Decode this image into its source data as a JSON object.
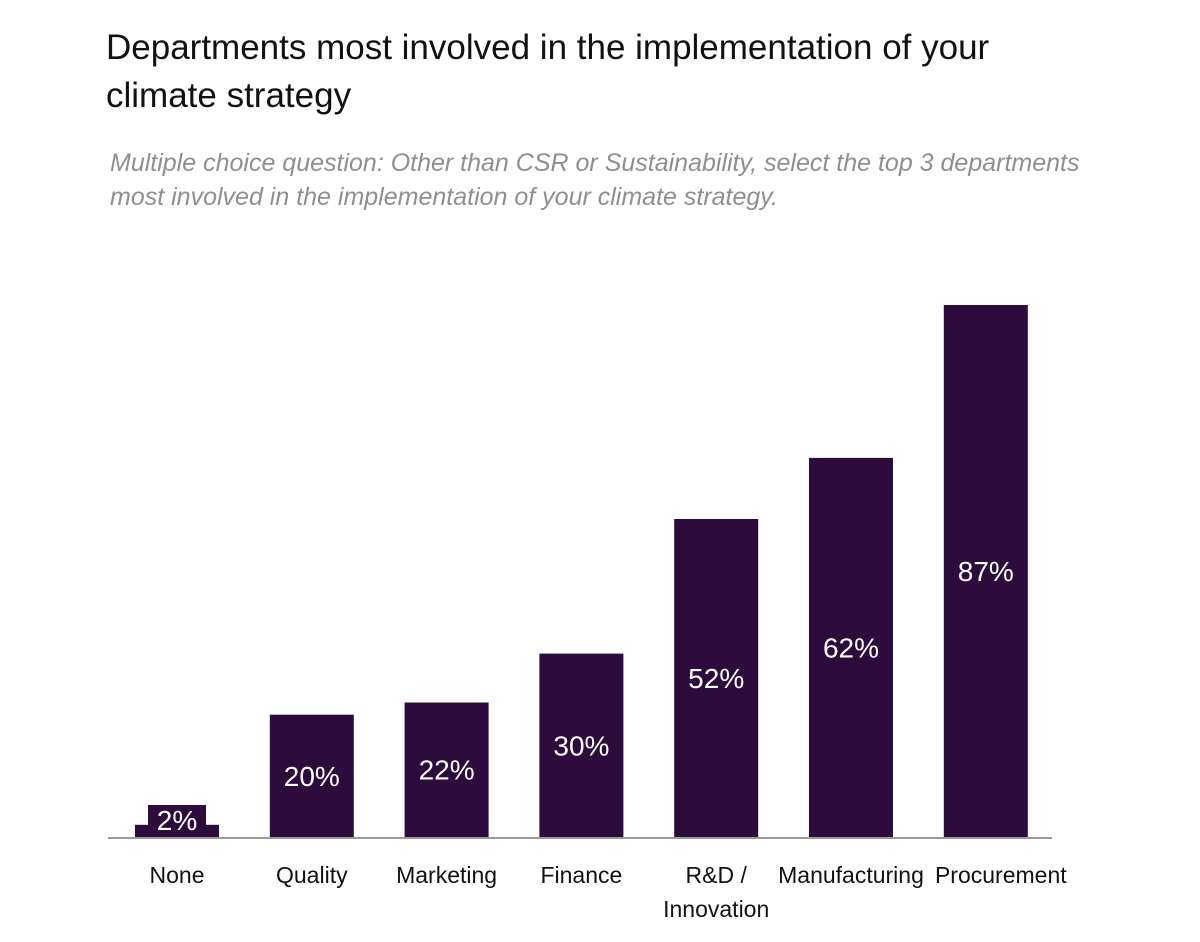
{
  "title": "Departments most involved in the implementation of your climate strategy",
  "subtitle": "Multiple choice question: Other than CSR or Sustainability, select the top 3 departments most involved in the implementation of your climate strategy.",
  "colors": {
    "bar": "#2e0b3d",
    "axis": "#9a9a9a",
    "bar_label": "#ffffff",
    "category_label": "#111111"
  },
  "chart_data": {
    "type": "bar",
    "categories": [
      "None",
      "Quality",
      "Marketing",
      "Finance",
      "R&D / Innovation",
      "Manufacturing",
      "Procurement"
    ],
    "category_label_lines": [
      [
        "None"
      ],
      [
        "Quality"
      ],
      [
        "Marketing"
      ],
      [
        "Finance"
      ],
      [
        "R&D /",
        "Innovation"
      ],
      [
        "Manufacturing"
      ],
      [
        "Procurement"
      ]
    ],
    "values": [
      2,
      20,
      22,
      30,
      52,
      62,
      87
    ],
    "value_labels": [
      "2%",
      "20%",
      "22%",
      "30%",
      "52%",
      "62%",
      "87%"
    ],
    "unit": "%",
    "xlabel": "",
    "ylabel": "",
    "ylim": [
      0,
      87
    ],
    "grid": false,
    "legend": false
  }
}
